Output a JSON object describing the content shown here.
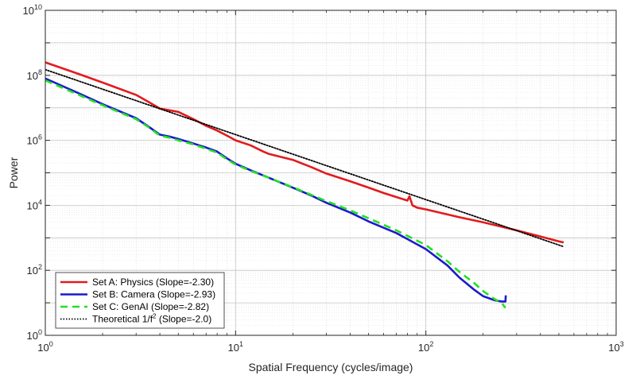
{
  "chart_data": {
    "type": "line",
    "scale": "log-log",
    "xlabel": "Spatial Frequency (cycles/image)",
    "ylabel": "Power",
    "xlim": [
      1,
      1000
    ],
    "ylim": [
      1,
      10000000000
    ],
    "x_tick_labels": [
      {
        "base": "10",
        "exp": "0"
      },
      {
        "base": "10",
        "exp": "1"
      },
      {
        "base": "10",
        "exp": "2"
      },
      {
        "base": "10",
        "exp": "3"
      }
    ],
    "y_tick_labels": [
      {
        "base": "10",
        "exp": "0"
      },
      {
        "base": "10",
        "exp": "2"
      },
      {
        "base": "10",
        "exp": "4"
      },
      {
        "base": "10",
        "exp": "6"
      },
      {
        "base": "10",
        "exp": "8"
      },
      {
        "base": "10",
        "exp": "10"
      }
    ],
    "grid": true,
    "legend_position": "bottom-left",
    "series": [
      {
        "name": "Set A: Physics (Slope=-2.30)",
        "color": "#e31a1c",
        "style": "solid",
        "x": [
          1,
          1.5,
          2,
          3,
          3.5,
          4,
          5,
          6,
          7,
          8,
          9,
          10,
          12,
          14,
          15,
          20,
          25,
          30,
          40,
          50,
          60,
          70,
          80,
          82,
          85,
          90,
          100,
          150,
          200,
          300,
          400,
          500,
          530
        ],
        "y": [
          250000000,
          110000000,
          60000000,
          25000000,
          15000000,
          9500000,
          7500000,
          4500000,
          2800000,
          2000000,
          1400000,
          1000000,
          700000,
          450000,
          380000,
          250000,
          150000,
          95000,
          55000,
          35000,
          24000,
          18000,
          14000,
          19000,
          10000,
          8500,
          7500,
          4300,
          3000,
          1700,
          1100,
          780,
          720
        ]
      },
      {
        "name": "Set B: Camera (Slope=-2.93)",
        "color": "#1a1acc",
        "style": "solid",
        "x": [
          1,
          1.5,
          2,
          3,
          3.5,
          4,
          4.5,
          5,
          6,
          7,
          8,
          9,
          10,
          12,
          15,
          20,
          25,
          30,
          40,
          50,
          70,
          100,
          130,
          150,
          180,
          200,
          230,
          250,
          262,
          263
        ],
        "y": [
          80000000,
          28000000,
          13000000,
          4800000,
          2600000,
          1500000,
          1300000,
          1100000,
          800000,
          600000,
          450000,
          280000,
          190000,
          120000,
          70000,
          35000,
          20000,
          12000,
          6000,
          3200,
          1400,
          450,
          140,
          60,
          25,
          16,
          12,
          11,
          11,
          17
        ]
      },
      {
        "name": "Set C: GenAI (Slope=-2.82)",
        "color": "#22e022",
        "style": "dashed",
        "x": [
          1,
          1.5,
          2,
          3,
          3.5,
          4,
          4.5,
          5,
          6,
          7,
          8,
          9,
          10,
          12,
          15,
          20,
          25,
          30,
          40,
          50,
          70,
          100,
          130,
          150,
          180,
          200,
          230,
          250,
          262
        ],
        "y": [
          70000000,
          25000000,
          12000000,
          4500000,
          2500000,
          1400000,
          1200000,
          1000000,
          750000,
          550000,
          420000,
          260000,
          180000,
          115000,
          70000,
          36000,
          21000,
          13500,
          7000,
          4000,
          1700,
          600,
          190,
          90,
          40,
          23,
          13,
          10,
          7
        ]
      },
      {
        "name": "Theoretical 1/f² (Slope=-2.0)",
        "label_parts": {
          "pre": "Theoretical 1/f",
          "sup": "2",
          "post": " (Slope=-2.0)"
        },
        "color": "#000000",
        "style": "dotted",
        "x": [
          1,
          530
        ],
        "y": [
          150000000,
          534
        ]
      }
    ]
  }
}
